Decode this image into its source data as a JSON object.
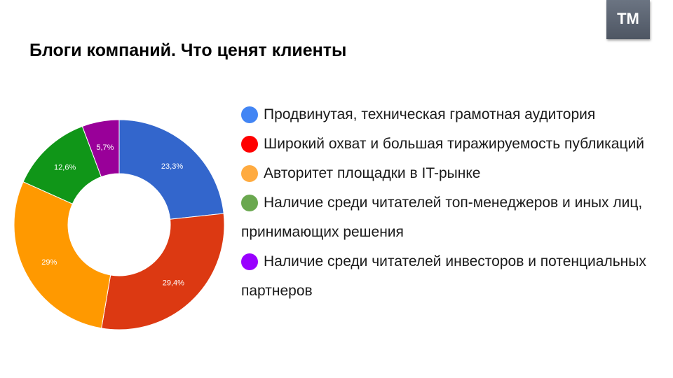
{
  "title": "Блоги компаний. Что ценят клиенты",
  "logo": {
    "text": "TM"
  },
  "chart_data": {
    "type": "pie",
    "donut": true,
    "start": "top",
    "direction": "clockwise",
    "slices": [
      {
        "label": "Продвинутая, техническая грамотная аудитория",
        "value": 23.3,
        "display": "23,3%",
        "color": "#3366cc"
      },
      {
        "label": "Широкий охват и большая тиражируемость публикаций",
        "value": 29.4,
        "display": "29,4%",
        "color": "#dc3912"
      },
      {
        "label": "Авторитет площадки в IT-рынке",
        "value": 29,
        "display": "29%",
        "color": "#ff9900"
      },
      {
        "label": "Наличие среди читателей топ-менеджеров и иных лиц, принимающих решения",
        "value": 12.6,
        "display": "12,6%",
        "color": "#109618"
      },
      {
        "label": "Наличие среди читателей инвесторов и потенциальных партнеров",
        "value": 5.7,
        "display": "5,7%",
        "color": "#990099"
      }
    ],
    "legend": {
      "placement": "right",
      "dot_colors": [
        "#4285f4",
        "#ff0000",
        "#ffab40",
        "#6aa84f",
        "#9900ff"
      ]
    }
  }
}
